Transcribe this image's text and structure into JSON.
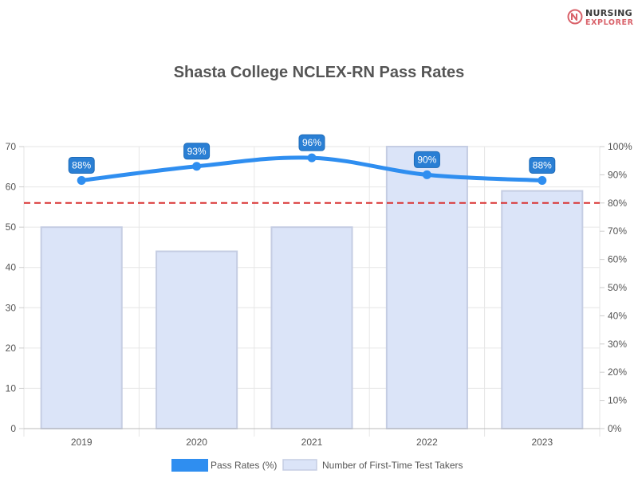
{
  "brand": {
    "line1": "NURSING",
    "line2": "EXPLORER",
    "icon": "nursing-explorer-logo-icon"
  },
  "chart_data": {
    "type": "bar",
    "title": "Shasta College NCLEX-RN Pass Rates",
    "categories": [
      "2019",
      "2020",
      "2021",
      "2022",
      "2023"
    ],
    "bars": {
      "name": "Number of First-Time Test Takers",
      "values": [
        50,
        44,
        50,
        70,
        59
      ],
      "color": "#dbe4f8",
      "border": "#c5cde3"
    },
    "line": {
      "name": "Pass Rates (%)",
      "values": [
        88,
        93,
        96,
        90,
        88
      ],
      "labels": [
        "88%",
        "93%",
        "96%",
        "90%",
        "88%"
      ],
      "color": "#2f8ef0",
      "label_bg": "#2a7fd4"
    },
    "reference_line": {
      "value": 80,
      "axis": "right",
      "color": "#d93030",
      "style": "dashed"
    },
    "y_left": {
      "min": 0,
      "max": 70,
      "ticks": [
        "0",
        "10",
        "20",
        "30",
        "40",
        "50",
        "60",
        "70"
      ]
    },
    "y_right": {
      "min": 0,
      "max": 100,
      "ticks": [
        "0%",
        "10%",
        "20%",
        "30%",
        "40%",
        "50%",
        "60%",
        "70%",
        "80%",
        "90%",
        "100%"
      ]
    },
    "grid": true,
    "legend_position": "bottom"
  }
}
